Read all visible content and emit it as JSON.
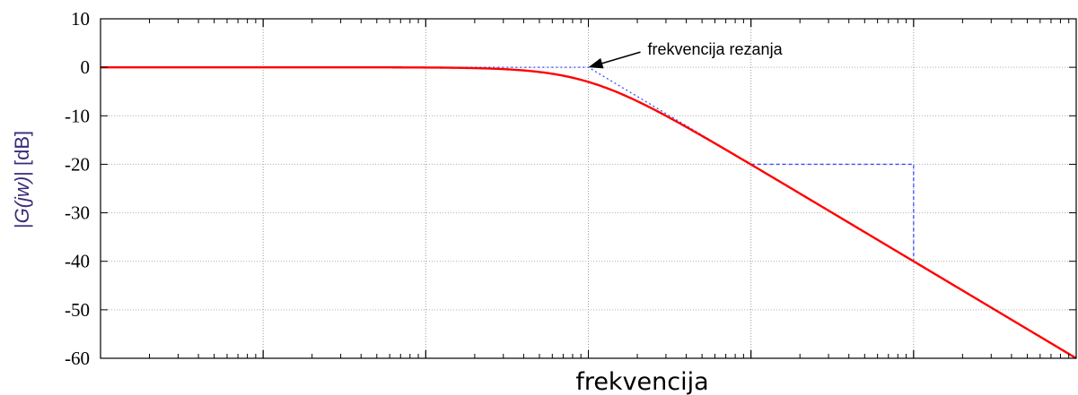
{
  "chart_data": {
    "type": "line",
    "title": "",
    "xlabel": "frekvencija",
    "ylabel": {
      "prefix": "|",
      "italic": "G(jw)",
      "suffix": "| [dB]"
    },
    "xscale": "log",
    "xlim_decades": [
      0,
      6
    ],
    "ylim": [
      -60,
      10
    ],
    "yticks": [
      10,
      0,
      -10,
      -20,
      -30,
      -40,
      -50,
      -60
    ],
    "ytick_labels": [
      "10",
      "0",
      "-10",
      "-20",
      "-30",
      "-40",
      "-50",
      "-60"
    ],
    "grid": true,
    "cutoff_decade": 3,
    "series": [
      {
        "role": "magnitude-response",
        "color": "#ff0000",
        "formula": "first-order low-pass: -10*log10(1+(f/fc)^2)"
      },
      {
        "role": "asymptote",
        "color": "#3b4cff",
        "style": "dotted",
        "points": [
          [
            2,
            0
          ],
          [
            3,
            0
          ],
          [
            6,
            -60
          ]
        ]
      },
      {
        "role": "slope-guide",
        "color": "#3b4cff",
        "style": "dashed",
        "points": [
          [
            4,
            -20
          ],
          [
            5,
            -20
          ],
          [
            5,
            -40
          ]
        ]
      }
    ],
    "annotations": [
      {
        "text": "frekvencija rezanja",
        "target": [
          3,
          0
        ]
      }
    ]
  }
}
